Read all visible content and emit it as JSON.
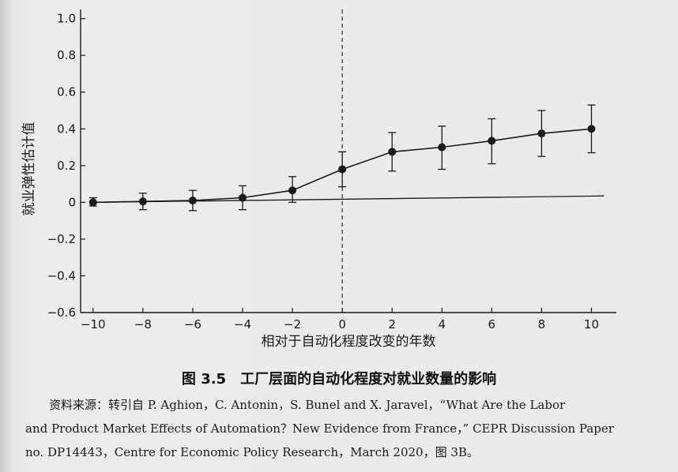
{
  "chart_data": {
    "type": "line",
    "xlabel": "相对于自动化程度改变的年数",
    "ylabel": "就业弹性估计值",
    "xlim": [
      -10.5,
      11
    ],
    "ylim": [
      -0.6,
      1.05
    ],
    "xticks": [
      -10,
      -8,
      -6,
      -4,
      -2,
      0,
      2,
      4,
      6,
      8,
      10
    ],
    "yticks": [
      -0.6,
      -0.4,
      -0.2,
      0,
      0.2,
      0.4,
      0.6,
      0.8,
      1.0
    ],
    "xtick_labels": [
      "−10",
      "−8",
      "−6",
      "−4",
      "−2",
      "0",
      "2",
      "4",
      "6",
      "8",
      "10"
    ],
    "ytick_labels": [
      "−0.6",
      "−0.4",
      "−0.2",
      "0",
      "0.2",
      "0.4",
      "0.6",
      "0.8",
      "1.0"
    ],
    "grid": false,
    "vertical_reference_line_x": 0,
    "series": [
      {
        "x": [
          -10,
          -8,
          -6,
          -4,
          -2,
          0,
          2,
          4,
          6,
          8,
          10
        ],
        "y": [
          0.0,
          0.005,
          0.01,
          0.025,
          0.065,
          0.18,
          0.275,
          0.3,
          0.335,
          0.375,
          0.4
        ],
        "y_lower": [
          -0.02,
          -0.04,
          -0.045,
          -0.04,
          0.0,
          0.085,
          0.17,
          0.18,
          0.21,
          0.25,
          0.27
        ],
        "y_upper": [
          0.025,
          0.05,
          0.065,
          0.09,
          0.14,
          0.275,
          0.38,
          0.415,
          0.455,
          0.5,
          0.53
        ]
      },
      {
        "x": [
          -10,
          10.5
        ],
        "y": [
          0.0,
          0.035
        ]
      }
    ]
  },
  "caption": {
    "figure_number": "图 3.5",
    "title": "工厂层面的自动化程度对就业数量的影响"
  },
  "source": {
    "line1": "资料来源：转引自 P. Aghion，C. Antonin，S. Bunel and X. Jaravel，“What Are the Labor",
    "line2": "and Product Market Effects of Automation？New Evidence from France，” CEPR Discussion Paper",
    "line3": "no. DP14443，Centre for Economic Policy Research，March 2020，图 3B。"
  },
  "colors": {
    "ink": "#1a1a1a",
    "paper": "#eaeae7"
  }
}
